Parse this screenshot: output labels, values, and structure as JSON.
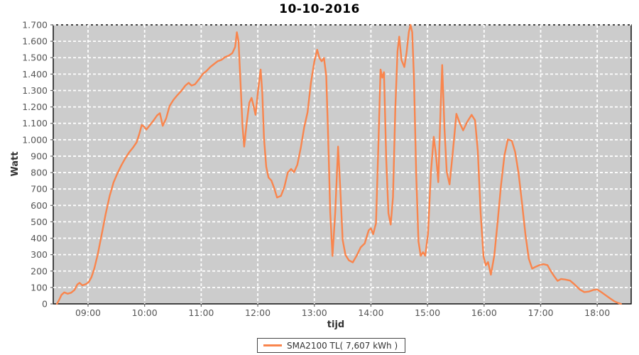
{
  "title": "10-10-2016",
  "colors": {
    "series": "#F9854D",
    "plot_background": "#CCCCCC",
    "gridline": "#FFFFFF",
    "plot_border": "#000000",
    "tick_label": "#555555",
    "axis_title": "#333333"
  },
  "legend": {
    "label": "SMA2100 TL( 7,607 kWh )"
  },
  "chart_data": {
    "type": "line",
    "title": "10-10-2016",
    "xlabel": "tijd",
    "ylabel": "Watt",
    "ylim": [
      0,
      1700
    ],
    "xlim_hours": [
      8.385,
      18.6
    ],
    "grid": true,
    "legend_position": "bottom-center",
    "y_ticks": [
      {
        "v": 0,
        "label": "0"
      },
      {
        "v": 100,
        "label": "100"
      },
      {
        "v": 200,
        "label": "200"
      },
      {
        "v": 300,
        "label": "300"
      },
      {
        "v": 400,
        "label": "400"
      },
      {
        "v": 500,
        "label": "500"
      },
      {
        "v": 600,
        "label": "600"
      },
      {
        "v": 700,
        "label": "700"
      },
      {
        "v": 800,
        "label": "800"
      },
      {
        "v": 900,
        "label": "900"
      },
      {
        "v": 1000,
        "label": "1.000"
      },
      {
        "v": 1100,
        "label": "1.100"
      },
      {
        "v": 1200,
        "label": "1.200"
      },
      {
        "v": 1300,
        "label": "1.300"
      },
      {
        "v": 1400,
        "label": "1.400"
      },
      {
        "v": 1500,
        "label": "1.500"
      },
      {
        "v": 1600,
        "label": "1.600"
      },
      {
        "v": 1700,
        "label": "1.700"
      }
    ],
    "x_ticks": [
      {
        "h": 9,
        "label": "09:00"
      },
      {
        "h": 10,
        "label": "10:00"
      },
      {
        "h": 11,
        "label": "11:00"
      },
      {
        "h": 12,
        "label": "12:00"
      },
      {
        "h": 13,
        "label": "13:00"
      },
      {
        "h": 14,
        "label": "14:00"
      },
      {
        "h": 15,
        "label": "15:00"
      },
      {
        "h": 16,
        "label": "16:00"
      },
      {
        "h": 17,
        "label": "17:00"
      },
      {
        "h": 18,
        "label": "18:00"
      }
    ],
    "series": [
      {
        "name": "SMA2100 TL( 7,607 kWh )",
        "color": "#F9854D",
        "points": [
          [
            8.45,
            0
          ],
          [
            8.49,
            25
          ],
          [
            8.53,
            55
          ],
          [
            8.58,
            70
          ],
          [
            8.64,
            62
          ],
          [
            8.7,
            68
          ],
          [
            8.76,
            85
          ],
          [
            8.81,
            118
          ],
          [
            8.85,
            128
          ],
          [
            8.9,
            113
          ],
          [
            8.96,
            120
          ],
          [
            9.01,
            132
          ],
          [
            9.06,
            162
          ],
          [
            9.11,
            215
          ],
          [
            9.17,
            300
          ],
          [
            9.24,
            420
          ],
          [
            9.31,
            545
          ],
          [
            9.38,
            655
          ],
          [
            9.45,
            740
          ],
          [
            9.52,
            795
          ],
          [
            9.59,
            845
          ],
          [
            9.66,
            888
          ],
          [
            9.73,
            925
          ],
          [
            9.8,
            955
          ],
          [
            9.86,
            985
          ],
          [
            9.91,
            1040
          ],
          [
            9.95,
            1090
          ],
          [
            9.99,
            1080
          ],
          [
            10.03,
            1062
          ],
          [
            10.09,
            1088
          ],
          [
            10.16,
            1118
          ],
          [
            10.22,
            1148
          ],
          [
            10.27,
            1162
          ],
          [
            10.32,
            1085
          ],
          [
            10.38,
            1130
          ],
          [
            10.44,
            1205
          ],
          [
            10.51,
            1243
          ],
          [
            10.58,
            1272
          ],
          [
            10.65,
            1298
          ],
          [
            10.72,
            1330
          ],
          [
            10.78,
            1347
          ],
          [
            10.83,
            1330
          ],
          [
            10.89,
            1338
          ],
          [
            10.96,
            1368
          ],
          [
            11.03,
            1402
          ],
          [
            11.09,
            1418
          ],
          [
            11.16,
            1443
          ],
          [
            11.23,
            1462
          ],
          [
            11.29,
            1478
          ],
          [
            11.36,
            1487
          ],
          [
            11.42,
            1503
          ],
          [
            11.49,
            1513
          ],
          [
            11.55,
            1528
          ],
          [
            11.6,
            1565
          ],
          [
            11.63,
            1655
          ],
          [
            11.66,
            1600
          ],
          [
            11.69,
            1380
          ],
          [
            11.73,
            1080
          ],
          [
            11.76,
            958
          ],
          [
            11.8,
            1090
          ],
          [
            11.85,
            1225
          ],
          [
            11.89,
            1255
          ],
          [
            11.93,
            1200
          ],
          [
            11.96,
            1152
          ],
          [
            12.0,
            1285
          ],
          [
            12.05,
            1428
          ],
          [
            12.08,
            1290
          ],
          [
            12.11,
            1010
          ],
          [
            12.15,
            835
          ],
          [
            12.19,
            770
          ],
          [
            12.24,
            752
          ],
          [
            12.29,
            705
          ],
          [
            12.34,
            648
          ],
          [
            12.41,
            658
          ],
          [
            12.47,
            712
          ],
          [
            12.53,
            800
          ],
          [
            12.59,
            822
          ],
          [
            12.64,
            802
          ],
          [
            12.7,
            848
          ],
          [
            12.76,
            950
          ],
          [
            12.82,
            1075
          ],
          [
            12.88,
            1168
          ],
          [
            12.94,
            1350
          ],
          [
            13.0,
            1478
          ],
          [
            13.05,
            1548
          ],
          [
            13.09,
            1498
          ],
          [
            13.13,
            1478
          ],
          [
            13.17,
            1498
          ],
          [
            13.21,
            1390
          ],
          [
            13.24,
            1060
          ],
          [
            13.28,
            560
          ],
          [
            13.32,
            292
          ],
          [
            13.37,
            560
          ],
          [
            13.42,
            958
          ],
          [
            13.46,
            690
          ],
          [
            13.5,
            390
          ],
          [
            13.55,
            298
          ],
          [
            13.61,
            265
          ],
          [
            13.68,
            253
          ],
          [
            13.75,
            295
          ],
          [
            13.82,
            345
          ],
          [
            13.89,
            368
          ],
          [
            13.96,
            448
          ],
          [
            14.0,
            460
          ],
          [
            14.04,
            425
          ],
          [
            14.09,
            492
          ],
          [
            14.13,
            950
          ],
          [
            14.17,
            1428
          ],
          [
            14.2,
            1378
          ],
          [
            14.23,
            1412
          ],
          [
            14.27,
            880
          ],
          [
            14.31,
            552
          ],
          [
            14.35,
            483
          ],
          [
            14.39,
            650
          ],
          [
            14.43,
            1180
          ],
          [
            14.47,
            1540
          ],
          [
            14.5,
            1628
          ],
          [
            14.54,
            1485
          ],
          [
            14.59,
            1443
          ],
          [
            14.63,
            1530
          ],
          [
            14.67,
            1655
          ],
          [
            14.7,
            1700
          ],
          [
            14.73,
            1655
          ],
          [
            14.76,
            1380
          ],
          [
            14.8,
            790
          ],
          [
            14.84,
            380
          ],
          [
            14.88,
            293
          ],
          [
            14.92,
            315
          ],
          [
            14.96,
            293
          ],
          [
            15.01,
            430
          ],
          [
            15.06,
            800
          ],
          [
            15.11,
            1018
          ],
          [
            15.15,
            905
          ],
          [
            15.19,
            742
          ],
          [
            15.23,
            1180
          ],
          [
            15.26,
            1455
          ],
          [
            15.3,
            1070
          ],
          [
            15.34,
            805
          ],
          [
            15.39,
            728
          ],
          [
            15.45,
            935
          ],
          [
            15.51,
            1158
          ],
          [
            15.57,
            1102
          ],
          [
            15.63,
            1057
          ],
          [
            15.7,
            1108
          ],
          [
            15.78,
            1152
          ],
          [
            15.84,
            1118
          ],
          [
            15.89,
            930
          ],
          [
            15.94,
            550
          ],
          [
            15.99,
            290
          ],
          [
            16.03,
            235
          ],
          [
            16.07,
            255
          ],
          [
            16.12,
            178
          ],
          [
            16.18,
            295
          ],
          [
            16.24,
            500
          ],
          [
            16.3,
            725
          ],
          [
            16.36,
            905
          ],
          [
            16.42,
            1002
          ],
          [
            16.49,
            993
          ],
          [
            16.55,
            925
          ],
          [
            16.61,
            795
          ],
          [
            16.67,
            615
          ],
          [
            16.73,
            425
          ],
          [
            16.79,
            275
          ],
          [
            16.85,
            215
          ],
          [
            16.91,
            226
          ],
          [
            16.98,
            236
          ],
          [
            17.05,
            242
          ],
          [
            17.12,
            236
          ],
          [
            17.18,
            200
          ],
          [
            17.24,
            168
          ],
          [
            17.3,
            140
          ],
          [
            17.36,
            152
          ],
          [
            17.44,
            148
          ],
          [
            17.52,
            142
          ],
          [
            17.6,
            118
          ],
          [
            17.69,
            88
          ],
          [
            17.77,
            72
          ],
          [
            17.85,
            75
          ],
          [
            17.93,
            85
          ],
          [
            18.0,
            88
          ],
          [
            18.07,
            72
          ],
          [
            18.14,
            55
          ],
          [
            18.22,
            35
          ],
          [
            18.3,
            16
          ],
          [
            18.37,
            5
          ],
          [
            18.42,
            0
          ]
        ]
      }
    ]
  }
}
